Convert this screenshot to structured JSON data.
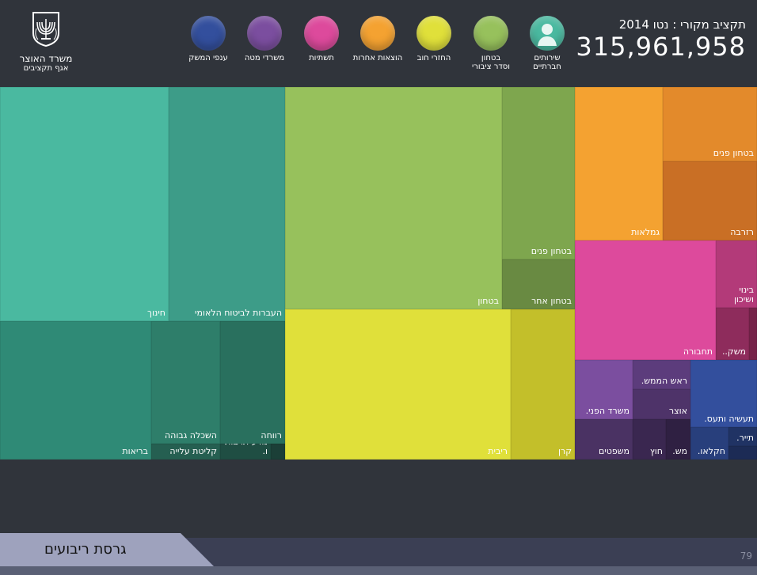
{
  "header": {
    "ministry": "משרד האוצר",
    "department": "אגף תקציבים",
    "budget_label": "תקציב מקורי : נטו 2014",
    "budget_value": "315,961,958"
  },
  "legend": [
    {
      "label": "שירותים\nחברתיים",
      "color": "#4ab9a0",
      "icon": "person-icon"
    },
    {
      "label": "בטחון\nוסדר ציבורי",
      "color": "#97c15c",
      "icon": ""
    },
    {
      "label": "החזרי חוב",
      "color": "#e0e03a",
      "icon": ""
    },
    {
      "label": "הוצאות אחרות",
      "color": "#f4a231",
      "icon": ""
    },
    {
      "label": "תשתיות",
      "color": "#dd4a9c",
      "icon": ""
    },
    {
      "label": "משרדי מטה",
      "color": "#7b4e9f",
      "icon": ""
    },
    {
      "label": "ענפי המשק",
      "color": "#334f9d",
      "icon": ""
    }
  ],
  "chart_data": {
    "type": "treemap",
    "title": "תקציב מקורי : נטו 2014",
    "total": 315961958,
    "groups": [
      {
        "name": "שירותים חברתיים",
        "color": "#4ab9a0",
        "cells": [
          "חינוך",
          "העברות לביטוח הלאומי",
          "בריאות",
          "השכלה גבוהה",
          "רווחה",
          "קליטת עלייה",
          "מדע תרבות ו."
        ]
      },
      {
        "name": "בטחון וסדר ציבורי",
        "color": "#97c15c",
        "cells": [
          "בטחון",
          "בטחון פנים",
          "בטחון אחר"
        ]
      },
      {
        "name": "החזרי חוב",
        "color": "#e0e03a",
        "cells": [
          "ריבית",
          "קרן"
        ]
      },
      {
        "name": "הוצאות אחרות",
        "color": "#f4a231",
        "cells": [
          "גמלאות",
          "בטחון פנים",
          "רזרבה"
        ]
      },
      {
        "name": "תשתיות",
        "color": "#dd4a9c",
        "cells": [
          "תחבורה",
          "בינוי ושיכון",
          "משק.."
        ]
      },
      {
        "name": "משרדי מטה",
        "color": "#7b4e9f",
        "cells": [
          "משרד הפני.",
          "ראש הממש.",
          "אוצר",
          "משפטים",
          "חוץ",
          "מש."
        ]
      },
      {
        "name": "ענפי המשק",
        "color": "#334f9d",
        "cells": [
          "תעשיה ותעס.",
          "תייר.",
          "חקלאו."
        ]
      }
    ],
    "cells": [
      {
        "label": "חינוך",
        "color": "#4ab9a0"
      },
      {
        "label": "העברות לביטוח הלאומי",
        "color": "#3d9c88"
      },
      {
        "label": "בריאות",
        "color": "#2f8a76"
      },
      {
        "label": "השכלה גבוהה",
        "color": "#2e7e6a"
      },
      {
        "label": "קליטת עלייה",
        "color": "#255f51"
      },
      {
        "label": "רווחה",
        "color": "#29705e"
      },
      {
        "label": "מדע תרבות ו.",
        "color": "#1f4e43"
      },
      {
        "label": "",
        "color": "#1b3f37"
      },
      {
        "label": "בטחון",
        "color": "#97c15c"
      },
      {
        "label": "בטחון פנים",
        "color": "#7ea64e"
      },
      {
        "label": "בטחון אחר",
        "color": "#698a42"
      },
      {
        "label": "ריבית",
        "color": "#e0e03a"
      },
      {
        "label": "קרן",
        "color": "#c3bf2a"
      },
      {
        "label": "גמלאות",
        "color": "#f4a231"
      },
      {
        "label": "בטחון פנים",
        "color": "#e38a2b"
      },
      {
        "label": "רזרבה",
        "color": "#c96f25"
      },
      {
        "label": "תחבורה",
        "color": "#dd4a9c"
      },
      {
        "label": "בינוי\nושיכון",
        "color": "#b33a79"
      },
      {
        "label": "משק..",
        "color": "#8e2c5c"
      },
      {
        "label": "",
        "color": "#762349"
      },
      {
        "label": "משרד הפני.",
        "color": "#7b4e9f"
      },
      {
        "label": "ראש הממש.",
        "color": "#5c3c7c"
      },
      {
        "label": "אוצר",
        "color": "#4e3369"
      },
      {
        "label": "משפטים",
        "color": "#4a3263"
      },
      {
        "label": "חוץ",
        "color": "#3a2750"
      },
      {
        "label": "מש.",
        "color": "#2f2042"
      },
      {
        "label": "",
        "color": "#3b2852"
      },
      {
        "label": "תעשיה ותעס.",
        "color": "#334f9d"
      },
      {
        "label": "חקלאו.",
        "color": "#283f7c"
      },
      {
        "label": "תייר.",
        "color": "#203364"
      },
      {
        "label": "",
        "color": "#1c2b55"
      }
    ]
  },
  "footer": {
    "title": "גרסת ריבועים",
    "page_number": "79"
  }
}
